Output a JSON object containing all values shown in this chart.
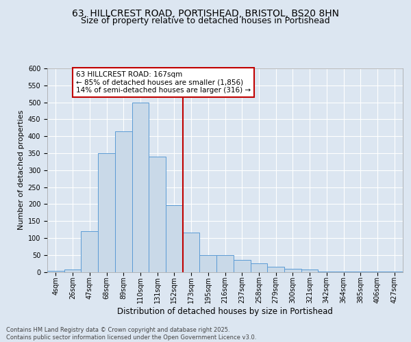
{
  "title_line1": "63, HILLCREST ROAD, PORTISHEAD, BRISTOL, BS20 8HN",
  "title_line2": "Size of property relative to detached houses in Portishead",
  "xlabel": "Distribution of detached houses by size in Portishead",
  "ylabel": "Number of detached properties",
  "bar_labels": [
    "4sqm",
    "26sqm",
    "47sqm",
    "68sqm",
    "89sqm",
    "110sqm",
    "131sqm",
    "152sqm",
    "173sqm",
    "195sqm",
    "216sqm",
    "237sqm",
    "258sqm",
    "279sqm",
    "300sqm",
    "321sqm",
    "342sqm",
    "364sqm",
    "385sqm",
    "406sqm",
    "427sqm"
  ],
  "bar_values": [
    4,
    7,
    120,
    350,
    415,
    500,
    340,
    197,
    115,
    50,
    50,
    35,
    25,
    15,
    10,
    7,
    2,
    2,
    2,
    2,
    2
  ],
  "bar_color": "#c9d9e8",
  "bar_edge_color": "#5b9bd5",
  "vline_x": 7.5,
  "vline_color": "#c00000",
  "annotation_text": "63 HILLCREST ROAD: 167sqm\n← 85% of detached houses are smaller (1,856)\n14% of semi-detached houses are larger (316) →",
  "annotation_box_color": "#c00000",
  "ylim": [
    0,
    600
  ],
  "yticks": [
    0,
    50,
    100,
    150,
    200,
    250,
    300,
    350,
    400,
    450,
    500,
    550,
    600
  ],
  "background_color": "#dce6f1",
  "plot_bg_color": "#dce6f1",
  "footer_text": "Contains HM Land Registry data © Crown copyright and database right 2025.\nContains public sector information licensed under the Open Government Licence v3.0.",
  "title_fontsize": 10,
  "subtitle_fontsize": 9,
  "tick_fontsize": 7,
  "xlabel_fontsize": 8.5,
  "ylabel_fontsize": 8,
  "annotation_fontsize": 7.5,
  "footer_fontsize": 6
}
